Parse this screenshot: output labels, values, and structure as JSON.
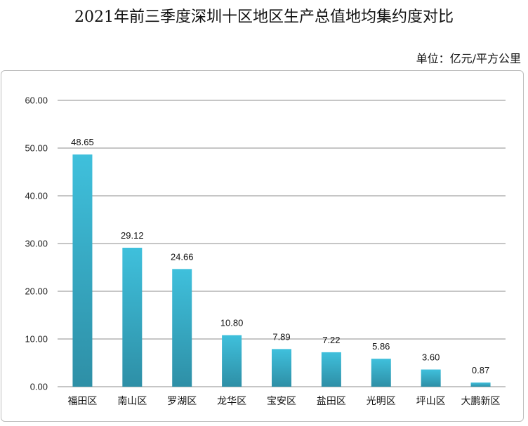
{
  "header": {
    "title": "2021年前三季度深圳十区地区生产总值地均集约度对比",
    "unit": "单位：亿元/平方公里"
  },
  "colors": {
    "bar_top": "#3fc0dc",
    "bar_bottom": "#2e8fa6",
    "grid": "#8c8c8c"
  },
  "chart_data": {
    "type": "bar",
    "title": "2021年前三季度深圳十区地区生产总值地均集约度对比",
    "unit": "单位：亿元/平方公里",
    "categories": [
      "福田区",
      "南山区",
      "罗湖区",
      "龙华区",
      "宝安区",
      "盐田区",
      "光明区",
      "坪山区",
      "大鹏新区"
    ],
    "values": [
      48.65,
      29.12,
      24.66,
      10.8,
      7.89,
      7.22,
      5.86,
      3.6,
      0.87
    ],
    "value_labels": [
      "48.65",
      "29.12",
      "24.66",
      "10.80",
      "7.89",
      "7.22",
      "5.86",
      "3.60",
      "0.87"
    ],
    "yticks": [
      "0.00",
      "10.00",
      "20.00",
      "30.00",
      "40.00",
      "50.00",
      "60.00"
    ],
    "ylim": [
      0,
      60
    ],
    "grid": true,
    "legend": "none"
  }
}
